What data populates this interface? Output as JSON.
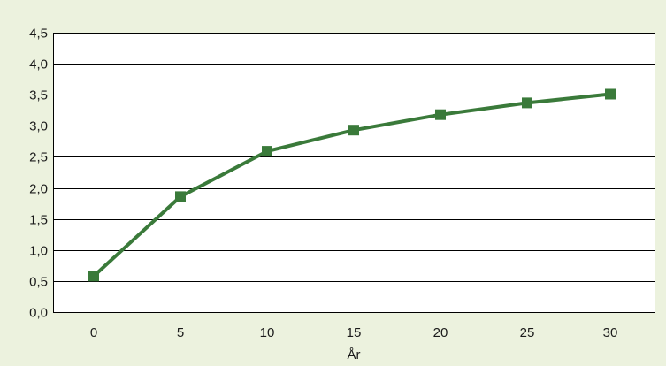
{
  "chart_data": {
    "type": "line",
    "title": "",
    "xlabel": "År",
    "ylabel": "",
    "x": [
      0,
      5,
      10,
      15,
      20,
      25,
      30
    ],
    "x_tick_labels": [
      "0",
      "5",
      "10",
      "15",
      "20",
      "25",
      "30"
    ],
    "y_tick_labels": [
      "0,0",
      "0,5",
      "1,0",
      "1,5",
      "2,0",
      "2,5",
      "3,0",
      "3,5",
      "4,0",
      "4,5"
    ],
    "y_ticks": [
      0,
      0.5,
      1.0,
      1.5,
      2.0,
      2.5,
      3.0,
      3.5,
      4.0,
      4.5
    ],
    "ylim": [
      0,
      4.5
    ],
    "grid": true,
    "legend": "none",
    "series": [
      {
        "values": [
          0.58,
          1.86,
          2.59,
          2.93,
          3.18,
          3.37,
          3.51
        ]
      }
    ],
    "colors": {
      "background": "#ecf2de",
      "plot_background": "#ffffff",
      "line": "#3a7a3a",
      "marker": "#3a7a3a",
      "grid": "#000000"
    }
  }
}
